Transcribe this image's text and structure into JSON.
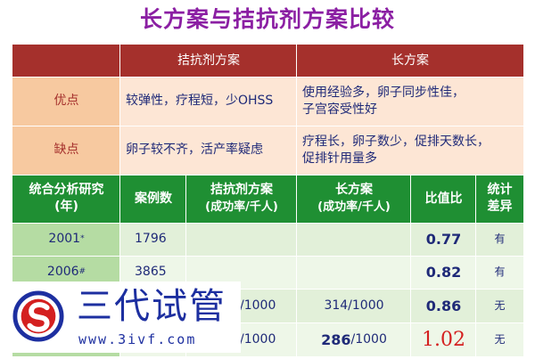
{
  "title": "长方案与拮抗剂方案比较",
  "header": {
    "antagonist": "拮抗剂方案",
    "long": "长方案"
  },
  "pros": {
    "label": "优点",
    "antagonist": "较弹性，疗程短，少OHSS",
    "long_line1": "使用经验多，卵子同步性佳，",
    "long_line2": "子宫容受性好"
  },
  "cons": {
    "label": "缺点",
    "antagonist": "卵子较不齐，活产率疑虑",
    "long_line1": "疗程长，卵子数少，促排天数长，",
    "long_line2": "促排针用量多"
  },
  "columns": {
    "study": "统合分析研究",
    "study_sub": "(年)",
    "cases": "案例数",
    "antagonist": "拮抗剂方案",
    "antagonist_sub": "(成功率/千人)",
    "long": "长方案",
    "long_sub": "(成功率/千人)",
    "ratio": "比值比",
    "diff": "统计",
    "diff_sub": "差异"
  },
  "rows": [
    {
      "year": "2001",
      "mark": "*",
      "cases": "1796",
      "antagonist": "",
      "long": "",
      "ratio": "0.77",
      "diff": "有"
    },
    {
      "year": "2006",
      "mark": "#",
      "cases": "3865",
      "antagonist": "",
      "long": "",
      "ratio": "0.82",
      "diff": "有"
    },
    {
      "year": "",
      "mark": "",
      "cases": "",
      "antagonist": "/1000",
      "long": "314/1000",
      "ratio": "0.86",
      "diff": "无"
    },
    {
      "year": "",
      "mark": "",
      "cases": "",
      "antagonist": "/1000",
      "long_bold": "286",
      "long_rest": "/1000",
      "ratio": "1.02",
      "diff": "无"
    }
  ],
  "watermark": {
    "name": "三代试管",
    "url": "www.3ivf.com",
    "logo_icon": "s-logo-icon"
  },
  "colors": {
    "title": "#8b1fa3",
    "header_red": "#a5302c",
    "header_green": "#1f8f33",
    "ratio_red": "#d42020"
  }
}
